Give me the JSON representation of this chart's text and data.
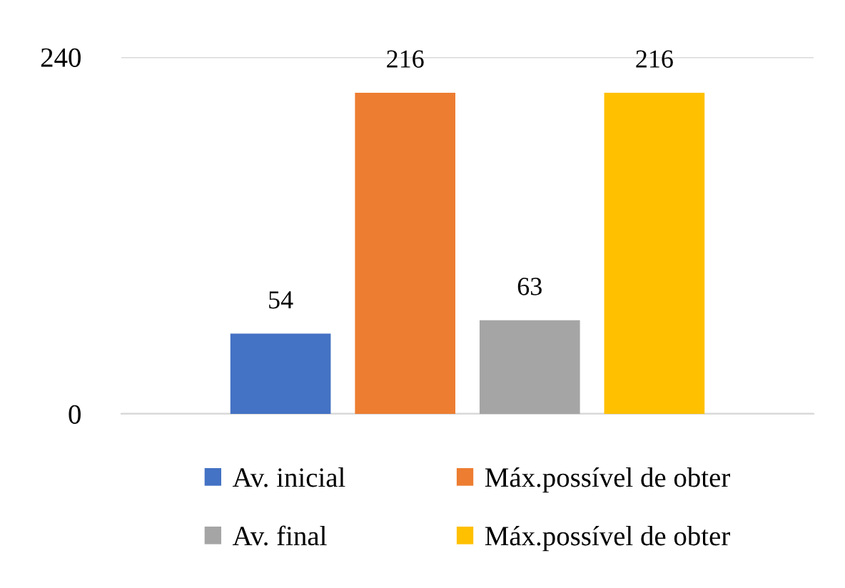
{
  "chart_data": {
    "type": "bar",
    "categories": [
      null
    ],
    "series": [
      {
        "name": "Av. inicial",
        "color": "#4472c4",
        "values": [
          54
        ]
      },
      {
        "name": "Máx.possível de obter",
        "color": "#ed7d31",
        "values": [
          216
        ]
      },
      {
        "name": "Av. final",
        "color": "#a5a5a5",
        "values": [
          63
        ]
      },
      {
        "name": "Máx.possível de obter",
        "color": "#ffc000",
        "values": [
          216
        ]
      }
    ],
    "ylim": [
      0,
      240
    ],
    "yticks": [
      0,
      240
    ],
    "grid": "y",
    "legend": "bottom",
    "data_labels": true
  }
}
